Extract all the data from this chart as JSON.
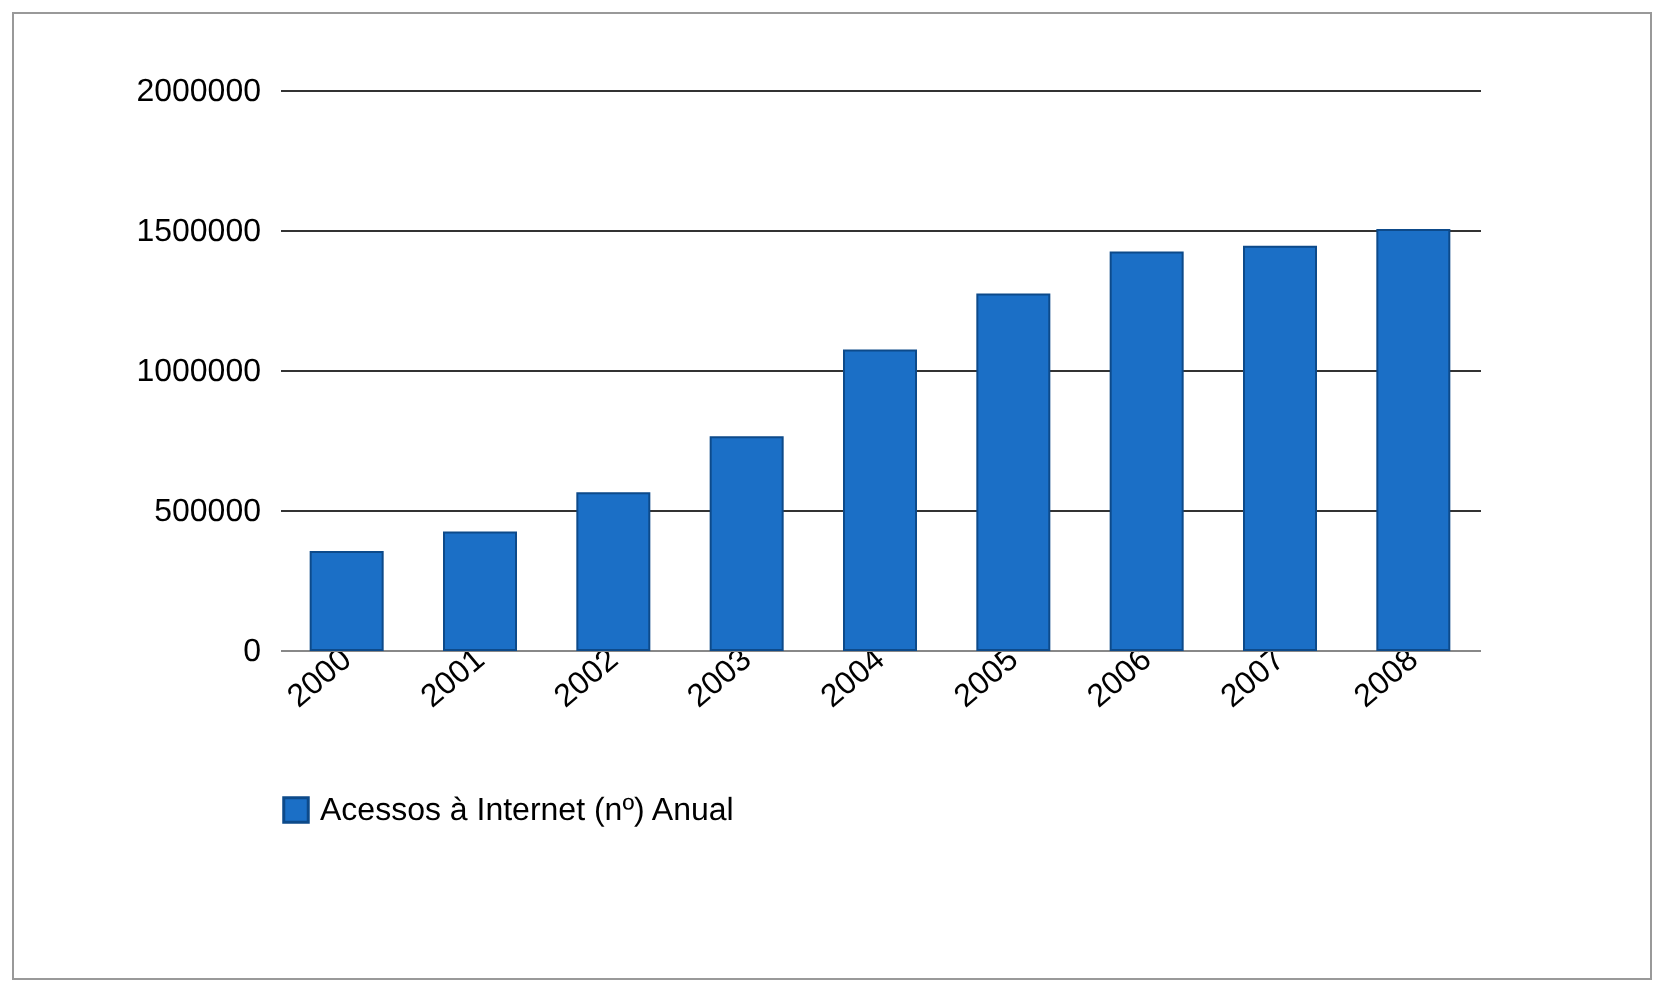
{
  "chart_data": {
    "type": "bar",
    "categories": [
      "2000",
      "2001",
      "2002",
      "2003",
      "2004",
      "2005",
      "2006",
      "2007",
      "2008"
    ],
    "series": [
      {
        "name": "Acessos à Internet (nº) Anual",
        "color": "#1b6fc6",
        "values": [
          350000,
          420000,
          560000,
          760000,
          1070000,
          1270000,
          1420000,
          1440000,
          1500000
        ]
      }
    ],
    "ylim": [
      0,
      2000000
    ],
    "yticks": [
      0,
      500000,
      1000000,
      1500000,
      2000000
    ],
    "grid": "y",
    "legend": "bottom"
  }
}
